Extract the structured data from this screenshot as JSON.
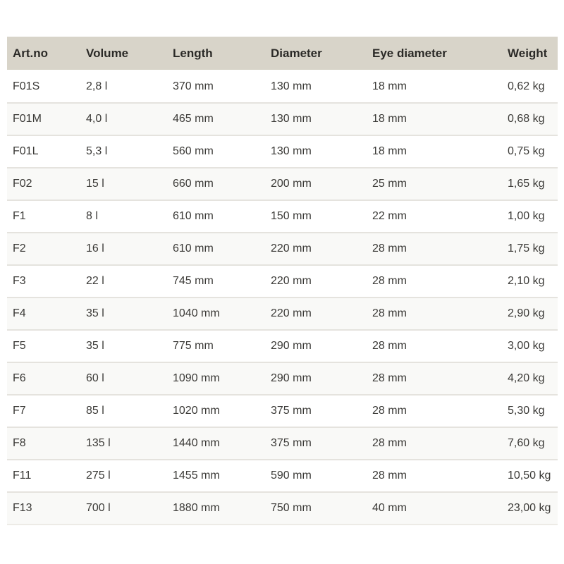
{
  "page": {
    "background": "#ffffff"
  },
  "table": {
    "columns": [
      "Art.no",
      "Volume",
      "Length",
      "Diameter",
      "Eye diameter",
      "Weight"
    ],
    "rows": [
      [
        "F01S",
        "2,8 l",
        "370 mm",
        "130 mm",
        "18 mm",
        "0,62 kg"
      ],
      [
        "F01M",
        "4,0 l",
        "465 mm",
        "130 mm",
        "18 mm",
        "0,68 kg"
      ],
      [
        "F01L",
        "5,3 l",
        "560 mm",
        "130 mm",
        "18 mm",
        "0,75 kg"
      ],
      [
        "F02",
        "15 l",
        "660 mm",
        "200 mm",
        "25 mm",
        "1,65 kg"
      ],
      [
        "F1",
        "8 l",
        "610 mm",
        "150 mm",
        "22 mm",
        "1,00 kg"
      ],
      [
        "F2",
        "16 l",
        "610 mm",
        "220 mm",
        "28 mm",
        "1,75 kg"
      ],
      [
        "F3",
        "22 l",
        "745 mm",
        "220 mm",
        "28 mm",
        "2,10 kg"
      ],
      [
        "F4",
        "35 l",
        "1040 mm",
        "220 mm",
        "28 mm",
        "2,90 kg"
      ],
      [
        "F5",
        "35 l",
        "775 mm",
        "290 mm",
        "28 mm",
        "3,00 kg"
      ],
      [
        "F6",
        "60 l",
        "1090 mm",
        "290 mm",
        "28 mm",
        "4,20 kg"
      ],
      [
        "F7",
        "85 l",
        "1020 mm",
        "375 mm",
        "28 mm",
        "5,30 kg"
      ],
      [
        "F8",
        "135 l",
        "1440 mm",
        "375 mm",
        "28 mm",
        "7,60 kg"
      ],
      [
        "F11",
        "275 l",
        "1455 mm",
        "590 mm",
        "28 mm",
        "10,50 kg"
      ],
      [
        "F13",
        "700 l",
        "1880 mm",
        "750 mm",
        "40 mm",
        "23,00 kg"
      ]
    ],
    "colors": {
      "header_bg": "#d8d4c9",
      "header_text": "#2b2a27",
      "body_text": "#3b3a37",
      "alt_row_bg": "#f9f9f7",
      "divider": "#e5e3de",
      "divider_light": "#edebe6"
    }
  }
}
